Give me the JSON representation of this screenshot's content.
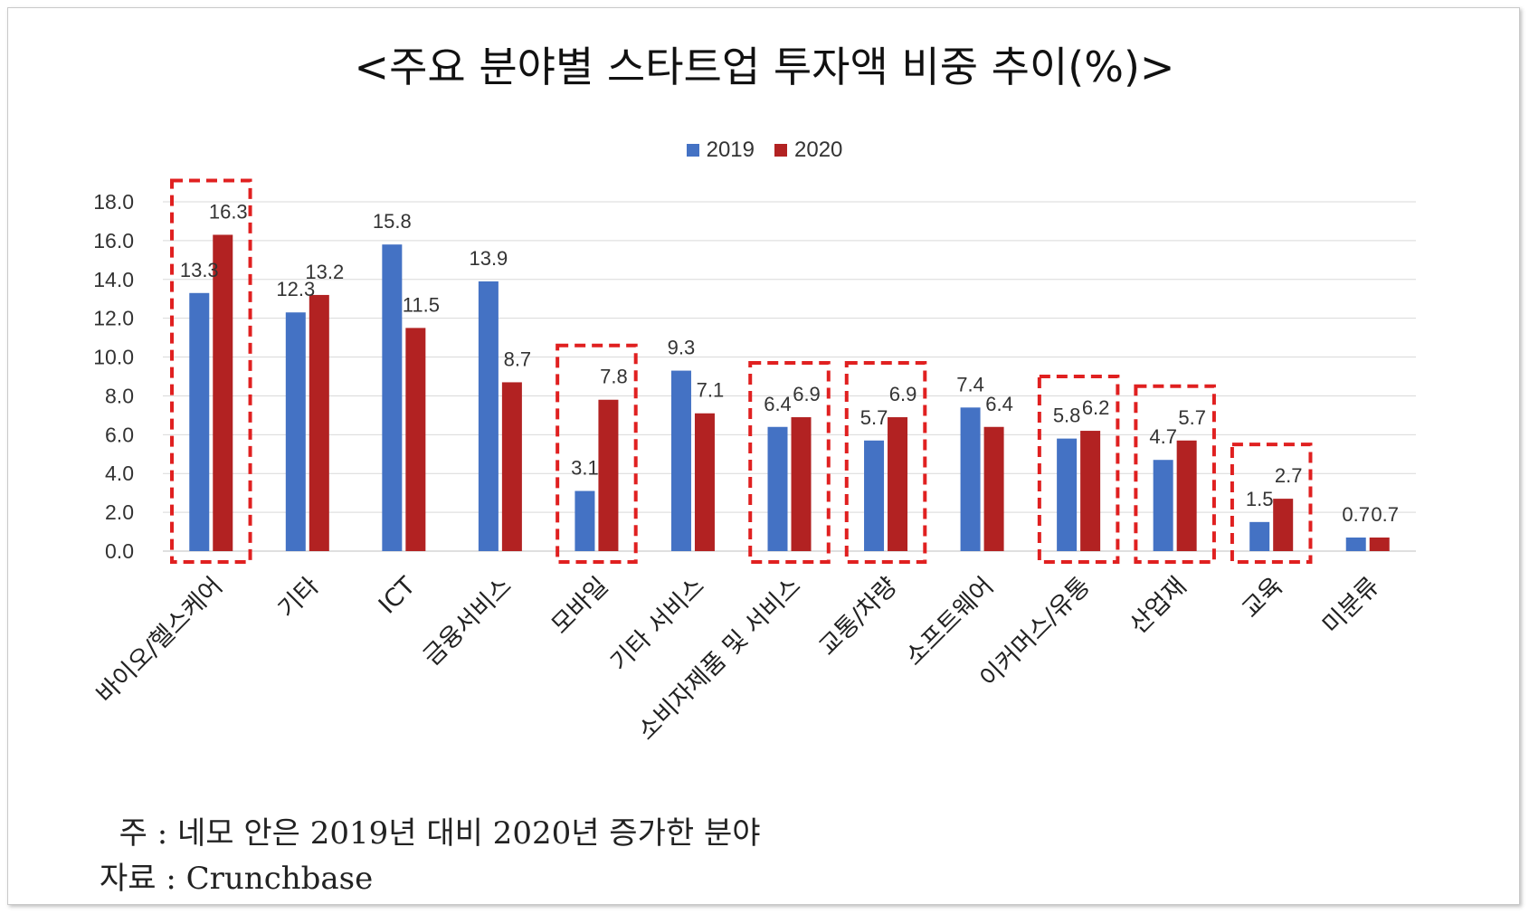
{
  "title": "<주요 분야별 스타트업 투자액 비중 추이(%)>",
  "colors": {
    "s2019": "#4472c4",
    "s2020": "#b22222",
    "highlight": "#e02020"
  },
  "legend": {
    "s2019": "2019",
    "s2020": "2020"
  },
  "chart_data": {
    "type": "bar",
    "title": "<주요 분야별 스타트업 투자액 비중 추이(%)>",
    "categories": [
      "바이오/헬스케어",
      "기타",
      "ICT",
      "금융서비스",
      "모바일",
      "기타 서비스",
      "소비자제품 및 서비스",
      "교통/차량",
      "소프트웨어",
      "이커머스/유통",
      "산업재",
      "교육",
      "미분류"
    ],
    "series": [
      {
        "name": "2019",
        "values": [
          13.3,
          12.3,
          15.8,
          13.9,
          3.1,
          9.3,
          6.4,
          5.7,
          7.4,
          5.8,
          4.7,
          1.5,
          0.7
        ]
      },
      {
        "name": "2020",
        "values": [
          16.3,
          13.2,
          11.5,
          8.7,
          7.8,
          7.1,
          6.9,
          6.9,
          6.4,
          6.2,
          5.7,
          2.7,
          0.7
        ]
      }
    ],
    "ylim": [
      0,
      18
    ],
    "yticks": [
      "0.0",
      "2.0",
      "4.0",
      "6.0",
      "8.0",
      "10.0",
      "12.0",
      "14.0",
      "16.0",
      "18.0"
    ],
    "grid": true,
    "legend_position": "top",
    "highlighted_categories": [
      "바이오/헬스케어",
      "모바일",
      "소비자제품 및 서비스",
      "교통/차량",
      "이커머스/유통",
      "산업재",
      "교육"
    ]
  },
  "notes": {
    "note1": "  주 : 네모 안은 2019년 대비 2020년 증가한 분야",
    "source": "자료 : Crunchbase"
  }
}
